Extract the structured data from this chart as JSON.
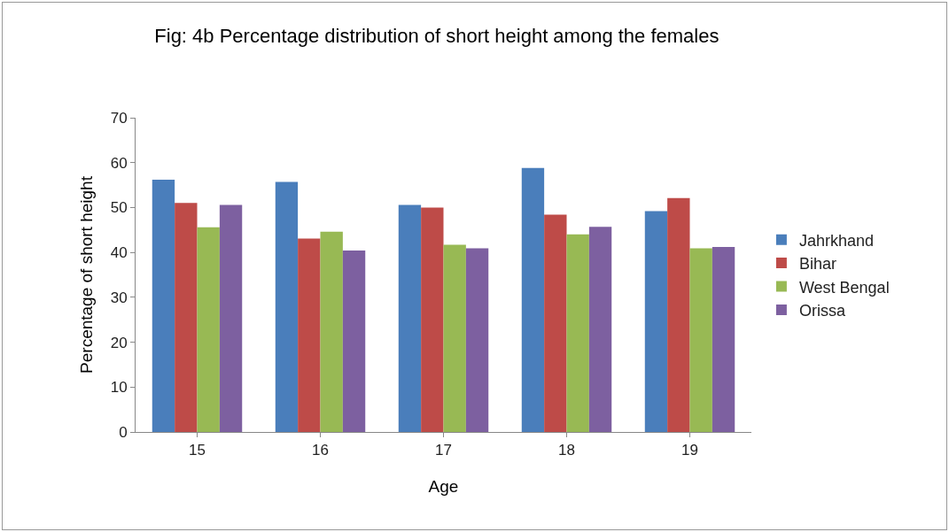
{
  "chart_data": {
    "type": "bar",
    "title": "Fig: 4b Percentage distribution of short height among the females",
    "xlabel": "Age",
    "ylabel": "Percentage of short height",
    "categories": [
      "15",
      "16",
      "17",
      "18",
      "19"
    ],
    "series": [
      {
        "name": "Jahrkhand",
        "color": "#4a7ebb",
        "values": [
          56.2,
          55.7,
          50.6,
          58.8,
          49.2
        ]
      },
      {
        "name": "Bihar",
        "color": "#be4b48",
        "values": [
          51.0,
          43.1,
          50.0,
          48.4,
          52.1
        ]
      },
      {
        "name": "West Bengal",
        "color": "#98b954",
        "values": [
          45.6,
          44.6,
          41.7,
          44.0,
          40.9
        ]
      },
      {
        "name": "Orissa",
        "color": "#7d60a0",
        "values": [
          50.6,
          40.4,
          40.9,
          45.7,
          41.2
        ]
      }
    ],
    "ylim": [
      0,
      70
    ],
    "yticks": [
      0,
      10,
      20,
      30,
      40,
      50,
      60,
      70
    ],
    "grid": false,
    "legend": "right"
  }
}
